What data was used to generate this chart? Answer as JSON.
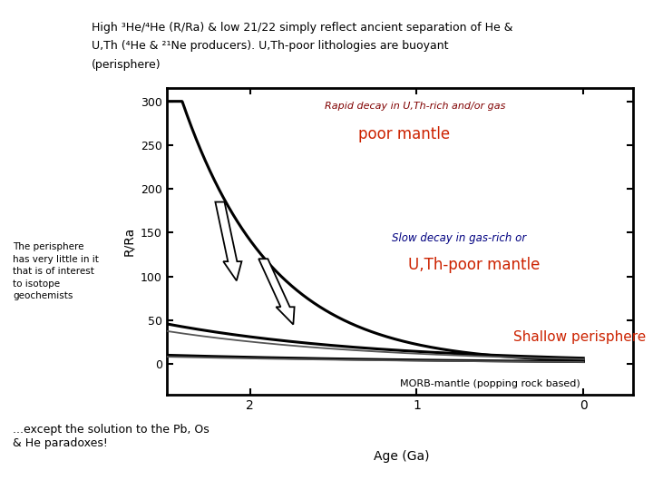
{
  "title_line1": "High ³He/⁴He (R/Ra) & low 21/22 simply reflect ancient separation of He &",
  "title_line2": "U,Th (⁴He & ²¹Ne producers). U,Th-poor lithologies are buoyant",
  "title_line3": "(perisphere)",
  "ylabel": "R/Ra",
  "xlabel_bottom": "Age (Ga)",
  "ytick_labels": [
    "0",
    "50",
    "100",
    "150",
    "200",
    "250",
    "300"
  ],
  "ytick_values": [
    0,
    50,
    100,
    150,
    200,
    250,
    300
  ],
  "xtick_values": [
    2,
    1,
    0
  ],
  "xtick_labels": [
    "2",
    "1",
    "0"
  ],
  "annotation_rapid_line1": "Rapid decay in U,Th-rich and/or gas",
  "annotation_rapid_line2": "poor mantle",
  "annotation_slow_line1": "Slow decay in gas-rich or",
  "annotation_slow_line2": "U,Th-poor mantle",
  "annotation_shallow": "Shallow perisphere",
  "annotation_morb": "MORB-mantle (popping rock based)",
  "left_text_line1": "The perisphere",
  "left_text_line2": "has very little in it",
  "left_text_line3": "that is of interest",
  "left_text_line4": "to isotope",
  "left_text_line5": "geochemists",
  "bottom_left_line1": "...except the solution to the Pb, Os",
  "bottom_left_line2": "& He paradoxes!",
  "bg_color": "#ffffff",
  "curve_color": "#000000",
  "title_color": "#000000",
  "rapid_color_1": "#800000",
  "rapid_color_2": "#cc2200",
  "slow_color_1": "#000080",
  "slow_color_2": "#cc2200",
  "shallow_color": "#cc2200",
  "morb_color": "#000000",
  "left_text_color": "#000000",
  "bottom_text_color": "#000000"
}
